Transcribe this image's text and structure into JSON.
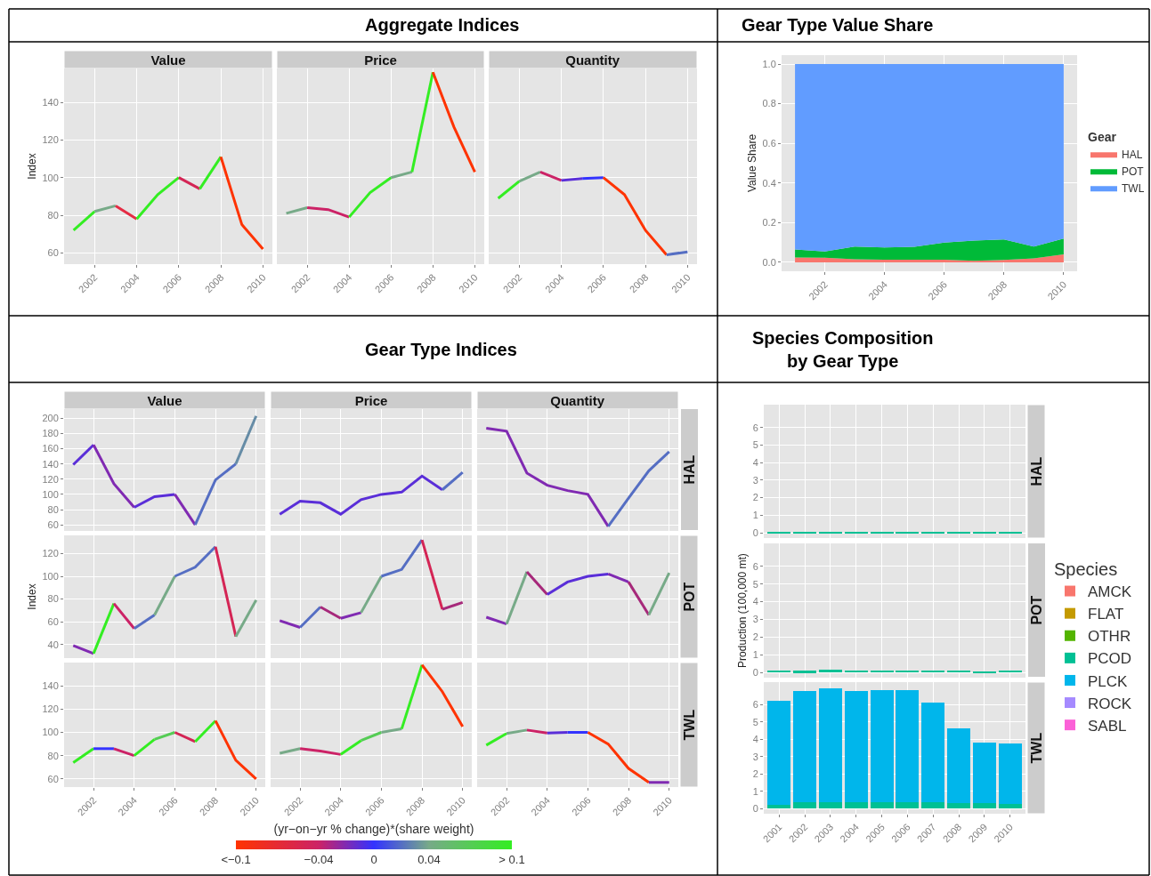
{
  "chart_data": [
    {
      "type": "line",
      "subtitle": "Value",
      "ylabel": "Index",
      "xlim": [
        2000.55,
        2010.45
      ],
      "xticks": [
        2002,
        2004,
        2006,
        2008,
        2010
      ],
      "ylim": [
        54,
        158
      ],
      "yticks": [
        60,
        80,
        100,
        120,
        140
      ],
      "grid": true,
      "series": [
        {
          "x": [
            2001,
            2002
          ],
          "values": [
            72,
            82
          ],
          "color": "#33ee22"
        },
        {
          "x": [
            2002,
            2003
          ],
          "values": [
            82,
            85
          ],
          "color": "#77aa88"
        },
        {
          "x": [
            2003,
            2004
          ],
          "values": [
            85,
            78
          ],
          "color": "#e52b44"
        },
        {
          "x": [
            2004,
            2005,
            2006
          ],
          "values": [
            78,
            91,
            100
          ],
          "color": "#33ee22"
        },
        {
          "x": [
            2006,
            2007
          ],
          "values": [
            100,
            94
          ],
          "color": "#d42555"
        },
        {
          "x": [
            2007,
            2008
          ],
          "values": [
            94,
            111
          ],
          "color": "#33ee22"
        },
        {
          "x": [
            2008,
            2009,
            2010
          ],
          "values": [
            111,
            75,
            62
          ],
          "color": "#ff3300"
        }
      ]
    },
    {
      "type": "line",
      "title": "Aggregate Indices",
      "subtitle": "Price",
      "xlim": [
        2000.55,
        2010.45
      ],
      "xticks": [
        2002,
        2004,
        2006,
        2008,
        2010
      ],
      "ylim": [
        54,
        158
      ],
      "yticks": [
        60,
        80,
        100,
        120,
        140
      ],
      "grid": true,
      "tick_labels": "x",
      "series": [
        {
          "x": [
            2001,
            2002
          ],
          "values": [
            81,
            84
          ],
          "color": "#77aa88"
        },
        {
          "x": [
            2002,
            2003,
            2004
          ],
          "values": [
            84,
            83,
            79
          ],
          "color": "#cc2266"
        },
        {
          "x": [
            2004,
            2005,
            2006
          ],
          "values": [
            79,
            92,
            100
          ],
          "color": "#33ee22"
        },
        {
          "x": [
            2006,
            2007
          ],
          "values": [
            100,
            103
          ],
          "color": "#77aa88"
        },
        {
          "x": [
            2007,
            2008
          ],
          "values": [
            103,
            156
          ],
          "color": "#33ee22"
        },
        {
          "x": [
            2008,
            2009,
            2010
          ],
          "values": [
            156,
            127,
            103
          ],
          "color": "#ff3300"
        }
      ]
    },
    {
      "type": "line",
      "subtitle": "Quantity",
      "xlim": [
        2000.55,
        2010.45
      ],
      "xticks": [
        2002,
        2004,
        2006,
        2008,
        2010
      ],
      "ylim": [
        54,
        158
      ],
      "yticks": [
        60,
        80,
        100,
        120,
        140
      ],
      "grid": true,
      "tick_labels": "x",
      "series": [
        {
          "x": [
            2001,
            2002
          ],
          "values": [
            89,
            98
          ],
          "color": "#33ee22"
        },
        {
          "x": [
            2002,
            2003
          ],
          "values": [
            98,
            103
          ],
          "color": "#77aa88"
        },
        {
          "x": [
            2003,
            2004
          ],
          "values": [
            103,
            98.5
          ],
          "color": "#cc2266"
        },
        {
          "x": [
            2004,
            2005
          ],
          "values": [
            98.5,
            99.5
          ],
          "color": "#5a2ed8"
        },
        {
          "x": [
            2005,
            2006
          ],
          "values": [
            99.5,
            100
          ],
          "color": "#3333ff"
        },
        {
          "x": [
            2006,
            2007,
            2008,
            2009
          ],
          "values": [
            100,
            91,
            72,
            59
          ],
          "color": "#ff3300"
        },
        {
          "x": [
            2009,
            2010
          ],
          "values": [
            59,
            60.5
          ],
          "color": "#556ec3"
        }
      ]
    },
    {
      "type": "area",
      "title": "Gear Type Value Share",
      "ylabel": "Value Share",
      "stacked": true,
      "x": [
        2001,
        2002,
        2003,
        2004,
        2005,
        2006,
        2007,
        2008,
        2009,
        2010
      ],
      "xlim": [
        2000.55,
        2010.45
      ],
      "xticks": [
        2002,
        2004,
        2006,
        2008,
        2010
      ],
      "ylim": [
        -0.045,
        1.045
      ],
      "yticks": [
        {
          "value": 0,
          "label": "0.0"
        },
        {
          "value": 0.2,
          "label": "0.2"
        },
        {
          "value": 0.4,
          "label": "0.4"
        },
        {
          "value": 0.6,
          "label": "0.6"
        },
        {
          "value": 0.8,
          "label": "0.8"
        },
        {
          "value": 1,
          "label": "1.0"
        }
      ],
      "grid": true,
      "legend": "right",
      "legend_title": "Gear",
      "series": [
        {
          "name": "HAL",
          "color": "#f8766d",
          "values": [
            0.025,
            0.023,
            0.015,
            0.013,
            0.013,
            0.013,
            0.008,
            0.012,
            0.02,
            0.04
          ]
        },
        {
          "name": "POT",
          "color": "#00ba38",
          "values": [
            0.04,
            0.032,
            0.065,
            0.062,
            0.065,
            0.087,
            0.102,
            0.103,
            0.06,
            0.08
          ]
        },
        {
          "name": "TWL",
          "color": "#619cff",
          "values": [
            0.935,
            0.945,
            0.92,
            0.925,
            0.922,
            0.9,
            0.89,
            0.885,
            0.92,
            0.88
          ]
        }
      ]
    },
    {
      "type": "line",
      "subtitle": "Value",
      "xlim": [
        2000.55,
        2010.45
      ],
      "xticks": [
        2002,
        2004,
        2006,
        2008,
        2010
      ],
      "ylim": [
        52,
        212
      ],
      "yticks": [
        60,
        80,
        100,
        120,
        140,
        160,
        180,
        200
      ],
      "grid": true,
      "tick_labels": "y",
      "series": [
        {
          "x": [
            2001,
            2002
          ],
          "values": [
            139,
            165
          ],
          "color": "#5a2ed8"
        },
        {
          "x": [
            2002,
            2003,
            2004
          ],
          "values": [
            165,
            114,
            83
          ],
          "color": "#802ab2"
        },
        {
          "x": [
            2004,
            2005,
            2006
          ],
          "values": [
            83,
            97,
            100
          ],
          "color": "#5a2ed8"
        },
        {
          "x": [
            2006,
            2007
          ],
          "values": [
            100,
            60
          ],
          "color": "#802ab2"
        },
        {
          "x": [
            2007,
            2008,
            2009
          ],
          "values": [
            60,
            119,
            140
          ],
          "color": "#556ec3"
        },
        {
          "x": [
            2009,
            2010
          ],
          "values": [
            140,
            203
          ],
          "color": "#668ca6"
        }
      ]
    },
    {
      "type": "line",
      "title": "Gear Type Indices",
      "subtitle": "Price",
      "xlim": [
        2000.55,
        2010.45
      ],
      "xticks": [
        2002,
        2004,
        2006,
        2008,
        2010
      ],
      "ylim": [
        52,
        212
      ],
      "yticks": [
        60,
        80,
        100,
        120,
        140,
        160,
        180,
        200
      ],
      "grid": true,
      "tick_labels": false,
      "series": [
        {
          "x": [
            2001,
            2002,
            2003,
            2004,
            2005,
            2006,
            2007,
            2008,
            2009
          ],
          "values": [
            74,
            91,
            89,
            74,
            93,
            100,
            103,
            124,
            106
          ],
          "color": "#5a2ed8"
        },
        {
          "x": [
            2009,
            2010
          ],
          "values": [
            106,
            129
          ],
          "color": "#556ec3"
        }
      ]
    },
    {
      "type": "line",
      "subtitle": "Quantity",
      "annotations": [
        "HAL"
      ],
      "xlim": [
        2000.55,
        2010.45
      ],
      "xticks": [
        2002,
        2004,
        2006,
        2008,
        2010
      ],
      "ylim": [
        52,
        212
      ],
      "yticks": [
        60,
        80,
        100,
        120,
        140,
        160,
        180,
        200
      ],
      "grid": true,
      "tick_labels": false,
      "series": [
        {
          "x": [
            2001,
            2002,
            2003,
            2004,
            2005,
            2006,
            2007
          ],
          "values": [
            187,
            183,
            128,
            112,
            105,
            100,
            58
          ],
          "color": "#802ab2"
        },
        {
          "x": [
            2007,
            2008,
            2009,
            2010
          ],
          "values": [
            58,
            95,
            131,
            156
          ],
          "color": "#556ec3"
        }
      ]
    },
    {
      "type": "line",
      "ylabel": "Index",
      "xlim": [
        2000.55,
        2010.45
      ],
      "xticks": [
        2002,
        2004,
        2006,
        2008,
        2010
      ],
      "ylim": [
        28,
        136
      ],
      "yticks": [
        40,
        60,
        80,
        100,
        120
      ],
      "grid": true,
      "tick_labels": "y",
      "series": [
        {
          "x": [
            2001,
            2002
          ],
          "values": [
            39,
            32
          ],
          "color": "#802ab2"
        },
        {
          "x": [
            2002,
            2003
          ],
          "values": [
            32,
            76
          ],
          "color": "#33ee22"
        },
        {
          "x": [
            2003,
            2004
          ],
          "values": [
            76,
            54
          ],
          "color": "#cc2266"
        },
        {
          "x": [
            2004,
            2005
          ],
          "values": [
            54,
            66
          ],
          "color": "#556ec3"
        },
        {
          "x": [
            2005,
            2006
          ],
          "values": [
            66,
            100
          ],
          "color": "#77aa88"
        },
        {
          "x": [
            2006,
            2007,
            2008
          ],
          "values": [
            100,
            108,
            126
          ],
          "color": "#556ec3"
        },
        {
          "x": [
            2008,
            2009
          ],
          "values": [
            126,
            47
          ],
          "color": "#d42555"
        },
        {
          "x": [
            2009,
            2010
          ],
          "values": [
            47,
            79
          ],
          "color": "#77aa88"
        }
      ]
    },
    {
      "type": "line",
      "xlim": [
        2000.55,
        2010.45
      ],
      "xticks": [
        2002,
        2004,
        2006,
        2008,
        2010
      ],
      "ylim": [
        28,
        136
      ],
      "yticks": [
        40,
        60,
        80,
        100,
        120
      ],
      "grid": true,
      "tick_labels": false,
      "series": [
        {
          "x": [
            2001,
            2002
          ],
          "values": [
            61,
            55
          ],
          "color": "#802ab2"
        },
        {
          "x": [
            2002,
            2003
          ],
          "values": [
            55,
            73
          ],
          "color": "#556ec3"
        },
        {
          "x": [
            2003,
            2004
          ],
          "values": [
            73,
            63
          ],
          "color": "#a6287a"
        },
        {
          "x": [
            2004,
            2005
          ],
          "values": [
            63,
            68
          ],
          "color": "#802ab2"
        },
        {
          "x": [
            2005,
            2006
          ],
          "values": [
            68,
            100
          ],
          "color": "#77aa88"
        },
        {
          "x": [
            2006,
            2007,
            2008
          ],
          "values": [
            100,
            106,
            132
          ],
          "color": "#556ec3"
        },
        {
          "x": [
            2008,
            2009
          ],
          "values": [
            132,
            71
          ],
          "color": "#d42555"
        },
        {
          "x": [
            2009,
            2010
          ],
          "values": [
            71,
            77
          ],
          "color": "#a6287a"
        }
      ]
    },
    {
      "type": "line",
      "annotations": [
        "POT"
      ],
      "xlim": [
        2000.55,
        2010.45
      ],
      "xticks": [
        2002,
        2004,
        2006,
        2008,
        2010
      ],
      "ylim": [
        28,
        136
      ],
      "yticks": [
        40,
        60,
        80,
        100,
        120
      ],
      "grid": true,
      "tick_labels": false,
      "series": [
        {
          "x": [
            2001,
            2002
          ],
          "values": [
            64,
            58
          ],
          "color": "#802ab2"
        },
        {
          "x": [
            2002,
            2003
          ],
          "values": [
            58,
            104
          ],
          "color": "#77aa88"
        },
        {
          "x": [
            2003,
            2004
          ],
          "values": [
            104,
            84
          ],
          "color": "#a6287a"
        },
        {
          "x": [
            2004,
            2005,
            2006,
            2007
          ],
          "values": [
            84,
            95,
            100,
            102
          ],
          "color": "#5a2ed8"
        },
        {
          "x": [
            2007,
            2008
          ],
          "values": [
            102,
            95
          ],
          "color": "#802ab2"
        },
        {
          "x": [
            2008,
            2009
          ],
          "values": [
            95,
            66
          ],
          "color": "#a6287a"
        },
        {
          "x": [
            2009,
            2010
          ],
          "values": [
            66,
            103
          ],
          "color": "#77aa88"
        }
      ]
    },
    {
      "type": "line",
      "xlim": [
        2000.55,
        2010.45
      ],
      "xticks": [
        2002,
        2004,
        2006,
        2008,
        2010
      ],
      "ylim": [
        53,
        160
      ],
      "yticks": [
        60,
        80,
        100,
        120,
        140
      ],
      "grid": true,
      "series": [
        {
          "x": [
            2001,
            2002
          ],
          "values": [
            74,
            86
          ],
          "color": "#33ee22"
        },
        {
          "x": [
            2002,
            2003
          ],
          "values": [
            86,
            86
          ],
          "color": "#3333ff"
        },
        {
          "x": [
            2003,
            2004
          ],
          "values": [
            86,
            80
          ],
          "color": "#cc2266"
        },
        {
          "x": [
            2004,
            2005
          ],
          "values": [
            80,
            94
          ],
          "color": "#33ee22"
        },
        {
          "x": [
            2005,
            2006
          ],
          "values": [
            94,
            100
          ],
          "color": "#55cc55"
        },
        {
          "x": [
            2006,
            2007
          ],
          "values": [
            100,
            92
          ],
          "color": "#d42555"
        },
        {
          "x": [
            2007,
            2008
          ],
          "values": [
            92,
            110
          ],
          "color": "#33ee22"
        },
        {
          "x": [
            2008,
            2009,
            2010
          ],
          "values": [
            110,
            76,
            60
          ],
          "color": "#ff3300"
        }
      ]
    },
    {
      "type": "line",
      "xlim": [
        2000.55,
        2010.45
      ],
      "xticks": [
        2002,
        2004,
        2006,
        2008,
        2010
      ],
      "ylim": [
        53,
        160
      ],
      "yticks": [
        60,
        80,
        100,
        120,
        140
      ],
      "grid": true,
      "tick_labels": "x",
      "clabel": "(yr−on−yr % change)*(share weight)",
      "clim": [
        -0.1,
        0.1
      ],
      "cticks": [
        {
          "value": -0.1,
          "label": "<−0.1"
        },
        {
          "value": -0.04,
          "label": "−0.04"
        },
        {
          "value": 0,
          "label": "0"
        },
        {
          "value": 0.04,
          "label": "0.04"
        },
        {
          "value": 0.1,
          "label": "> 0.1"
        }
      ],
      "colors": [
        "#ff3300",
        "#cc2266",
        "#3333ff",
        "#77aa88",
        "#33ee22"
      ],
      "series": [
        {
          "x": [
            2001,
            2002
          ],
          "values": [
            82,
            86
          ],
          "color": "#77aa88"
        },
        {
          "x": [
            2002,
            2003,
            2004
          ],
          "values": [
            86,
            84,
            81
          ],
          "color": "#cc2266"
        },
        {
          "x": [
            2004,
            2005
          ],
          "values": [
            81,
            93
          ],
          "color": "#33ee22"
        },
        {
          "x": [
            2005,
            2006
          ],
          "values": [
            93,
            100
          ],
          "color": "#55cc55"
        },
        {
          "x": [
            2006,
            2007
          ],
          "values": [
            100,
            103
          ],
          "color": "#77aa88"
        },
        {
          "x": [
            2007,
            2008
          ],
          "values": [
            103,
            158
          ],
          "color": "#33ee22"
        },
        {
          "x": [
            2008,
            2009,
            2010
          ],
          "values": [
            158,
            135,
            105
          ],
          "color": "#ff3300"
        }
      ]
    },
    {
      "type": "line",
      "annotations": [
        "TWL"
      ],
      "xlim": [
        2000.55,
        2010.45
      ],
      "xticks": [
        2002,
        2004,
        2006,
        2008,
        2010
      ],
      "ylim": [
        53,
        160
      ],
      "yticks": [
        60,
        80,
        100,
        120,
        140
      ],
      "grid": true,
      "tick_labels": "x",
      "series": [
        {
          "x": [
            2001,
            2002
          ],
          "values": [
            89,
            99
          ],
          "color": "#33ee22"
        },
        {
          "x": [
            2002,
            2003
          ],
          "values": [
            99,
            102
          ],
          "color": "#77aa88"
        },
        {
          "x": [
            2003,
            2004
          ],
          "values": [
            102,
            99.5
          ],
          "color": "#cc2266"
        },
        {
          "x": [
            2004,
            2005
          ],
          "values": [
            99.5,
            100
          ],
          "color": "#5a2ed8"
        },
        {
          "x": [
            2005,
            2006
          ],
          "values": [
            100,
            100
          ],
          "color": "#3333ff"
        },
        {
          "x": [
            2006,
            2007,
            2008,
            2009
          ],
          "values": [
            100,
            90,
            69,
            57
          ],
          "color": "#ff3300"
        },
        {
          "x": [
            2009,
            2010
          ],
          "values": [
            57,
            57
          ],
          "color": "#802ab2"
        }
      ]
    },
    {
      "type": "bar",
      "title": "Species Composition\nby Gear Type",
      "annotations": [
        "HAL"
      ],
      "stacked": true,
      "categories": [
        "2001",
        "2002",
        "2003",
        "2004",
        "2005",
        "2006",
        "2007",
        "2008",
        "2009",
        "2010"
      ],
      "ylim": [
        -0.3,
        7.3
      ],
      "yticks": [
        0,
        1,
        2,
        3,
        4,
        5,
        6
      ],
      "grid": true,
      "tick_labels": "y",
      "series": [
        {
          "color": "#00c094",
          "values": [
            0.02,
            0.02,
            0.02,
            0.02,
            0.02,
            0.02,
            0.02,
            0.02,
            0.02,
            0.02
          ]
        }
      ]
    },
    {
      "type": "bar",
      "ylabel": "Production (100,000 mt)",
      "annotations": [
        "POT"
      ],
      "stacked": true,
      "categories": [
        "2001",
        "2002",
        "2003",
        "2004",
        "2005",
        "2006",
        "2007",
        "2008",
        "2009",
        "2010"
      ],
      "ylim": [
        -0.3,
        7.3
      ],
      "yticks": [
        0,
        1,
        2,
        3,
        4,
        5,
        6
      ],
      "grid": true,
      "tick_labels": "y",
      "legend": "right",
      "legend_title": "Species",
      "series": [
        {
          "name": "AMCK",
          "color": "#f8766d",
          "values": [
            0,
            0,
            0,
            0,
            0,
            0,
            0,
            0,
            0,
            0
          ]
        },
        {
          "name": "FLAT",
          "color": "#c49a00",
          "values": [
            0,
            0,
            0,
            0,
            0,
            0,
            0,
            0,
            0,
            0
          ]
        },
        {
          "name": "OTHR",
          "color": "#53b400",
          "values": [
            0,
            0,
            0,
            0,
            0,
            0,
            0,
            0,
            0,
            0
          ]
        },
        {
          "name": "PCOD",
          "color": "#00c094",
          "values": [
            0.12,
            0.1,
            0.15,
            0.12,
            0.12,
            0.12,
            0.12,
            0.12,
            0.07,
            0.12
          ]
        },
        {
          "name": "PLCK",
          "color": "#00b6eb",
          "values": [
            0,
            0,
            0,
            0,
            0,
            0,
            0,
            0,
            0,
            0
          ]
        },
        {
          "name": "ROCK",
          "color": "#a58aff",
          "values": [
            0,
            0,
            0,
            0,
            0,
            0,
            0,
            0,
            0,
            0
          ]
        },
        {
          "name": "SABL",
          "color": "#fb61d7",
          "values": [
            0,
            0,
            0,
            0,
            0,
            0,
            0,
            0,
            0,
            0
          ]
        }
      ]
    },
    {
      "type": "bar",
      "annotations": [
        "TWL"
      ],
      "stacked": true,
      "categories": [
        "2001",
        "2002",
        "2003",
        "2004",
        "2005",
        "2006",
        "2007",
        "2008",
        "2009",
        "2010"
      ],
      "ylim": [
        -0.3,
        7.3
      ],
      "yticks": [
        0,
        1,
        2,
        3,
        4,
        5,
        6
      ],
      "grid": true,
      "series": [
        {
          "color": "#00c094",
          "values": [
            0.2,
            0.35,
            0.35,
            0.35,
            0.35,
            0.35,
            0.35,
            0.3,
            0.3,
            0.25
          ]
        },
        {
          "color": "#00b6eb",
          "values": [
            6.0,
            6.43,
            6.61,
            6.43,
            6.49,
            6.49,
            5.77,
            4.33,
            3.5,
            3.52
          ]
        }
      ]
    }
  ]
}
